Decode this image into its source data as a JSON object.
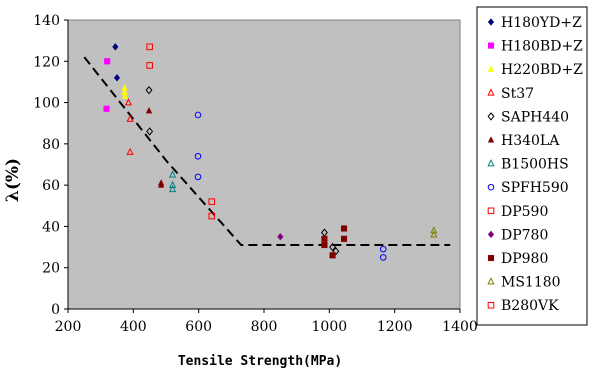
{
  "chart_data": {
    "type": "scatter",
    "title": "",
    "xlabel": "Tensile Strength(MPa)",
    "ylabel": "λ(%)",
    "xlim": [
      200,
      1400
    ],
    "ylim": [
      0,
      140
    ],
    "xticks": [
      "200",
      "400",
      "600",
      "800",
      "1000",
      "1200",
      "1400"
    ],
    "yticks": [
      "0",
      "20",
      "40",
      "60",
      "80",
      "100",
      "120",
      "140"
    ],
    "grid": false,
    "plot_background": "#c0c0c0",
    "legend_position": "right",
    "trend_line": {
      "style": "dashed",
      "color": "#000000",
      "x": [
        250,
        500,
        730,
        1370
      ],
      "y": [
        122,
        72,
        31,
        31
      ]
    },
    "series": [
      {
        "name": "H180YD+Z",
        "color": "#000080",
        "marker": "diamond",
        "x": [
          345,
          350
        ],
        "y": [
          127,
          112
        ]
      },
      {
        "name": "H180BD+Z",
        "color": "#ff00ff",
        "marker": "square",
        "x": [
          320,
          318
        ],
        "y": [
          120,
          97
        ]
      },
      {
        "name": "H220BD+Z",
        "color": "#ffff00",
        "marker": "triangle",
        "x": [
          373,
          373,
          375
        ],
        "y": [
          107,
          105,
          103
        ]
      },
      {
        "name": "St37",
        "color": "#ff0000",
        "marker": "triangle-open",
        "x": [
          385,
          390,
          390
        ],
        "y": [
          100,
          92,
          76
        ]
      },
      {
        "name": "SAPH440",
        "color": "#000000",
        "marker": "diamond-open",
        "x": [
          448,
          450,
          985,
          1010,
          1020
        ],
        "y": [
          106,
          86,
          37,
          30,
          28
        ]
      },
      {
        "name": "H340LA",
        "color": "#800000",
        "marker": "triangle",
        "x": [
          448,
          485,
          485
        ],
        "y": [
          96,
          61,
          60
        ]
      },
      {
        "name": "B1500HS",
        "color": "#008080",
        "marker": "triangle-open",
        "x": [
          520,
          520,
          520
        ],
        "y": [
          65,
          60,
          58
        ]
      },
      {
        "name": "SPFH590",
        "color": "#0000ff",
        "marker": "circle-open",
        "x": [
          598,
          598,
          598,
          1165,
          1165
        ],
        "y": [
          94,
          74,
          64,
          29,
          25
        ]
      },
      {
        "name": "DP590",
        "color": "#ff0000",
        "marker": "square-open",
        "x": [
          450,
          450,
          640,
          640
        ],
        "y": [
          127,
          118,
          52,
          45
        ]
      },
      {
        "name": "DP780",
        "color": "#800080",
        "marker": "diamond",
        "x": [
          850
        ],
        "y": [
          35
        ]
      },
      {
        "name": "DP980",
        "color": "#800000",
        "marker": "square",
        "x": [
          985,
          985,
          1010,
          1045,
          1045
        ],
        "y": [
          34,
          31,
          26,
          39,
          34
        ]
      },
      {
        "name": "MS1180",
        "color": "#808000",
        "marker": "triangle-open",
        "x": [
          1320,
          1320
        ],
        "y": [
          38,
          36
        ]
      },
      {
        "name": "B280VK",
        "color": "#ff0000",
        "marker": "square-open",
        "x": [],
        "y": []
      }
    ]
  }
}
